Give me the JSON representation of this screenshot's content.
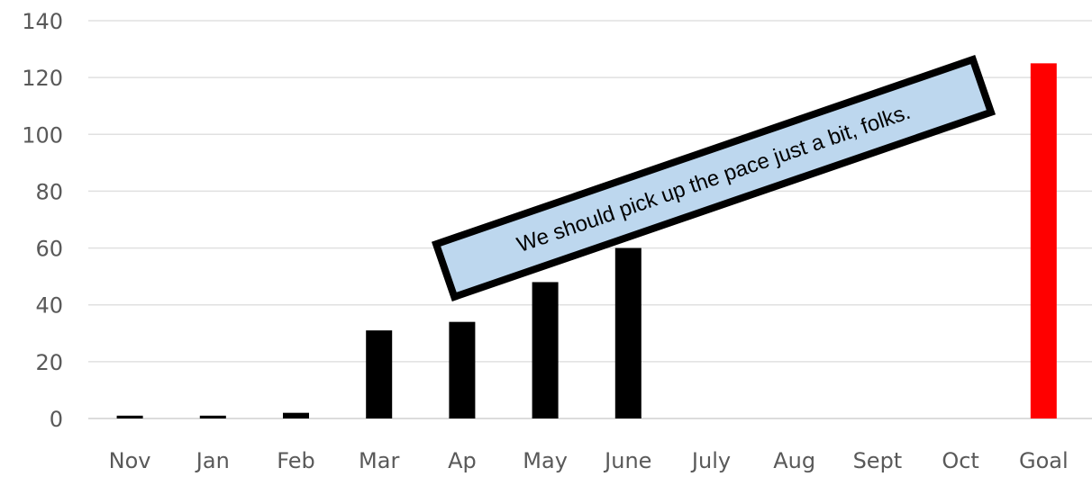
{
  "chart_data": {
    "type": "bar",
    "categories": [
      "Nov",
      "Jan",
      "Feb",
      "Mar",
      "Ap",
      "May",
      "June",
      "July",
      "Aug",
      "Sept",
      "Oct",
      "Goal"
    ],
    "values": [
      1,
      1,
      2,
      31,
      34,
      48,
      60,
      null,
      null,
      null,
      null,
      125
    ],
    "bar_colors": [
      "#000000",
      "#000000",
      "#000000",
      "#000000",
      "#000000",
      "#000000",
      "#000000",
      "#000000",
      "#000000",
      "#000000",
      "#000000",
      "#ff0000"
    ],
    "title": "",
    "xlabel": "",
    "ylabel": "",
    "ylim": [
      0,
      140
    ],
    "yticks": [
      0,
      20,
      40,
      60,
      80,
      100,
      120,
      140
    ],
    "grid": "horizontal",
    "legend": "none",
    "annotation": {
      "text": "We should pick up the pace just a bit, folks.",
      "fill_color": "#bdd7ee",
      "border_color": "#000000"
    }
  }
}
